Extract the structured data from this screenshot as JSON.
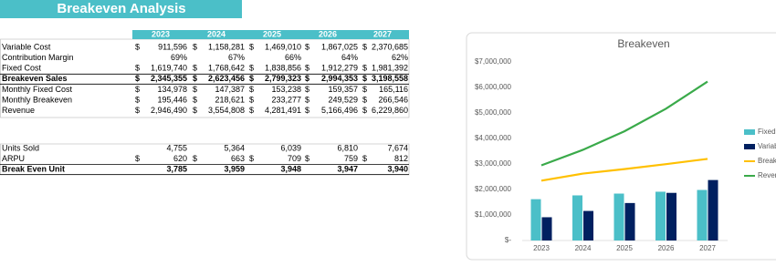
{
  "header": {
    "title": "Breakeven Analysis"
  },
  "table1": {
    "columns": [
      "2023",
      "2024",
      "2025",
      "2026",
      "2027"
    ],
    "rows": [
      {
        "label": "Variable Cost",
        "cells": [
          {
            "prefix": "$",
            "value": "911,596"
          },
          {
            "prefix": "$",
            "value": "1,158,281"
          },
          {
            "prefix": "$",
            "value": "1,469,010"
          },
          {
            "prefix": "$",
            "value": "1,867,025"
          },
          {
            "prefix": "$",
            "value": "2,370,685"
          }
        ]
      },
      {
        "label": "Contribution Margin",
        "cells": [
          {
            "value": "69%"
          },
          {
            "value": "67%"
          },
          {
            "value": "66%"
          },
          {
            "value": "64%"
          },
          {
            "value": "62%"
          }
        ]
      },
      {
        "label": "Fixed Cost",
        "cells": [
          {
            "prefix": "$",
            "value": "1,619,740"
          },
          {
            "prefix": "$",
            "value": "1,768,642"
          },
          {
            "prefix": "$",
            "value": "1,838,856"
          },
          {
            "prefix": "$",
            "value": "1,912,279"
          },
          {
            "prefix": "$",
            "value": "1,981,392"
          }
        ]
      },
      {
        "label": "Breakeven Sales",
        "bold": true,
        "cells": [
          {
            "prefix": "$",
            "value": "2,345,355"
          },
          {
            "prefix": "$",
            "value": "2,623,456"
          },
          {
            "prefix": "$",
            "value": "2,799,323"
          },
          {
            "prefix": "$",
            "value": "2,994,353"
          },
          {
            "prefix": "$",
            "value": "3,198,558"
          }
        ]
      },
      {
        "label": "Monthly Fixed Cost",
        "cells": [
          {
            "prefix": "$",
            "value": "134,978"
          },
          {
            "prefix": "$",
            "value": "147,387"
          },
          {
            "prefix": "$",
            "value": "153,238"
          },
          {
            "prefix": "$",
            "value": "159,357"
          },
          {
            "prefix": "$",
            "value": "165,116"
          }
        ]
      },
      {
        "label": "Monthly Breakeven",
        "cells": [
          {
            "prefix": "$",
            "value": "195,446"
          },
          {
            "prefix": "$",
            "value": "218,621"
          },
          {
            "prefix": "$",
            "value": "233,277"
          },
          {
            "prefix": "$",
            "value": "249,529"
          },
          {
            "prefix": "$",
            "value": "266,546"
          }
        ]
      },
      {
        "label": "Revenue",
        "cells": [
          {
            "prefix": "$",
            "value": "2,946,490"
          },
          {
            "prefix": "$",
            "value": "3,554,808"
          },
          {
            "prefix": "$",
            "value": "4,281,491"
          },
          {
            "prefix": "$",
            "value": "5,166,496"
          },
          {
            "prefix": "$",
            "value": "6,229,860"
          }
        ]
      }
    ]
  },
  "table2": {
    "rows": [
      {
        "label": "Units Sold",
        "cells": [
          {
            "value": "4,755"
          },
          {
            "value": "5,364"
          },
          {
            "value": "6,039"
          },
          {
            "value": "6,810"
          },
          {
            "value": "7,674"
          }
        ]
      },
      {
        "label": "ARPU",
        "cells": [
          {
            "prefix": "$",
            "value": "620"
          },
          {
            "prefix": "$",
            "value": "663"
          },
          {
            "prefix": "$",
            "value": "709"
          },
          {
            "prefix": "$",
            "value": "759"
          },
          {
            "prefix": "$",
            "value": "812"
          }
        ]
      },
      {
        "label": "Break Even Unit",
        "bold": true,
        "cells": [
          {
            "value": "3,785"
          },
          {
            "value": "3,959"
          },
          {
            "value": "3,948"
          },
          {
            "value": "3,947"
          },
          {
            "value": "3,940"
          }
        ]
      }
    ]
  },
  "chart_data": {
    "type": "bar-line",
    "title": "Breakeven",
    "categories": [
      "2023",
      "2024",
      "2025",
      "2026",
      "2027"
    ],
    "ylim": [
      0,
      7000000
    ],
    "yticks": [
      {
        "value": 0,
        "label": "$-"
      },
      {
        "value": 1000000,
        "label": "$1,000,000"
      },
      {
        "value": 2000000,
        "label": "$2,000,000"
      },
      {
        "value": 3000000,
        "label": "$3,000,000"
      },
      {
        "value": 4000000,
        "label": "$4,000,000"
      },
      {
        "value": 5000000,
        "label": "$5,000,000"
      },
      {
        "value": 6000000,
        "label": "$6,000,000"
      },
      {
        "value": 7000000,
        "label": "$7,000,000"
      }
    ],
    "series": [
      {
        "name": "Fixed Cost",
        "kind": "bar",
        "color": "#4bbfc8",
        "values": [
          1619740,
          1768642,
          1838856,
          1912279,
          1981392
        ]
      },
      {
        "name": "Variable Cost",
        "kind": "bar",
        "color": "#002060",
        "values": [
          911596,
          1158281,
          1469010,
          1867025,
          2370685
        ]
      },
      {
        "name": "Breakeven Sales",
        "kind": "line",
        "color": "#ffc000",
        "values": [
          2345355,
          2623456,
          2799323,
          2994353,
          3198558
        ]
      },
      {
        "name": "Revenue",
        "kind": "line",
        "color": "#3aaa4a",
        "values": [
          2946490,
          3554808,
          4281491,
          5166496,
          6229860
        ]
      }
    ]
  }
}
